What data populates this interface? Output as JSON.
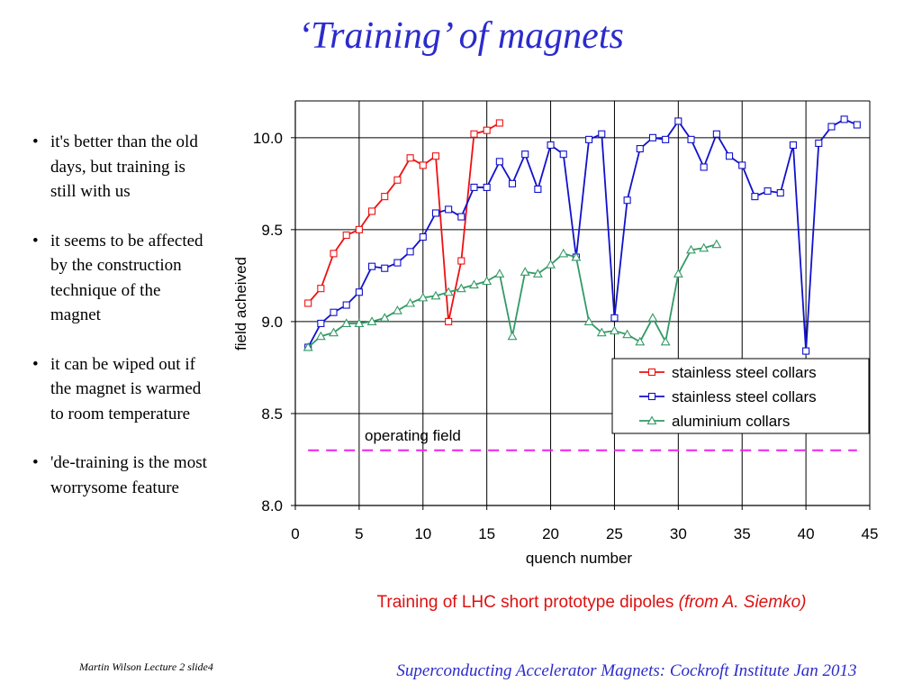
{
  "slide": {
    "title": "‘Training’ of magnets",
    "bullets": [
      "it's better than the old days, but training is still with us",
      "it seems to be affected by the construction technique of the magnet",
      "it can be wiped out if the magnet is warmed to room temperature",
      "'de-training is the most worrysome feature"
    ],
    "caption_main": "Training of LHC short prototype dipoles ",
    "caption_source": "(from A. Siemko)",
    "footer_left": "Martin Wilson Lecture 2 slide4",
    "footer_right": "Superconducting Accelerator Magnets:  Cockroft Institute Jan 2013"
  },
  "chart_data": {
    "type": "line",
    "xlabel": "quench number",
    "ylabel": "field acheived",
    "xlim": [
      0,
      45
    ],
    "ylim": [
      8.0,
      10.2
    ],
    "x_ticks": [
      0,
      5,
      10,
      15,
      20,
      25,
      30,
      35,
      40,
      45
    ],
    "y_ticks": [
      8.0,
      8.5,
      9.0,
      9.5,
      10.0
    ],
    "y_tick_labels": [
      "8.0",
      "8.5",
      "9.0",
      "9.5",
      "10.0"
    ],
    "grid": true,
    "legend_position": "bottom-right",
    "series": [
      {
        "name": "stainless steel collars",
        "color": "#ee1111",
        "marker": "square",
        "x": [
          1,
          2,
          3,
          4,
          5,
          6,
          7,
          8,
          9,
          10,
          11,
          12,
          13,
          14,
          15,
          16
        ],
        "y": [
          9.1,
          9.18,
          9.37,
          9.47,
          9.5,
          9.6,
          9.68,
          9.77,
          9.89,
          9.85,
          9.9,
          9.0,
          9.33,
          10.02,
          10.04,
          10.08
        ]
      },
      {
        "name": "stainless steel collars",
        "color": "#1111cc",
        "marker": "square",
        "x": [
          1,
          2,
          3,
          4,
          5,
          6,
          7,
          8,
          9,
          10,
          11,
          12,
          13,
          14,
          15,
          16,
          17,
          18,
          19,
          20,
          21,
          22,
          23,
          24,
          25,
          26,
          27,
          28,
          29,
          30,
          31,
          32,
          33,
          34,
          35,
          36,
          37,
          38,
          39,
          40,
          41,
          42,
          43,
          44
        ],
        "y": [
          8.86,
          8.99,
          9.05,
          9.09,
          9.16,
          9.3,
          9.29,
          9.32,
          9.38,
          9.46,
          9.59,
          9.61,
          9.57,
          9.73,
          9.73,
          9.87,
          9.75,
          9.91,
          9.72,
          9.96,
          9.91,
          9.35,
          9.99,
          10.02,
          9.02,
          9.66,
          9.94,
          10.0,
          9.99,
          10.09,
          9.99,
          9.84,
          10.02,
          9.9,
          9.85,
          9.68,
          9.71,
          9.7,
          9.96,
          8.84,
          9.97,
          10.06,
          10.1,
          10.07
        ]
      },
      {
        "name": "aluminium collars",
        "color": "#339966",
        "marker": "triangle",
        "x": [
          1,
          2,
          3,
          4,
          5,
          6,
          7,
          8,
          9,
          10,
          11,
          12,
          13,
          14,
          15,
          16,
          17,
          18,
          19,
          20,
          21,
          22,
          23,
          24,
          25,
          26,
          27,
          28,
          29,
          30,
          31,
          32,
          33
        ],
        "y": [
          8.86,
          8.92,
          8.94,
          8.99,
          8.99,
          9.0,
          9.02,
          9.06,
          9.1,
          9.13,
          9.14,
          9.16,
          9.18,
          9.2,
          9.22,
          9.26,
          8.92,
          9.27,
          9.26,
          9.31,
          9.37,
          9.35,
          9.0,
          8.94,
          8.95,
          8.93,
          8.89,
          9.02,
          8.89,
          9.26,
          9.39,
          9.4,
          9.42
        ]
      }
    ],
    "reference_line": {
      "label": "operating field",
      "y": 8.3,
      "x_range": [
        1,
        44
      ],
      "color": "#ee22ee"
    }
  }
}
